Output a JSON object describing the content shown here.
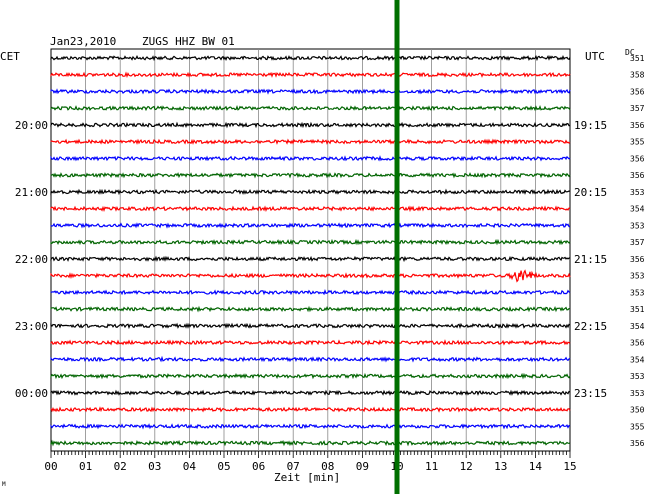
{
  "header": {
    "date": "Jan23,2010",
    "station": "ZUGS HHZ BW 01",
    "left_zone": "CET",
    "right_zone": "UTC",
    "dc_label": "DC"
  },
  "xaxis": {
    "label": "Zeit [min]",
    "ticks": [
      "00",
      "01",
      "02",
      "03",
      "04",
      "05",
      "06",
      "07",
      "08",
      "09",
      "10",
      "11",
      "12",
      "13",
      "14",
      "15"
    ]
  },
  "left_hour_labels": [
    {
      "text": "20:00",
      "trace": 4
    },
    {
      "text": "21:00",
      "trace": 8
    },
    {
      "text": "22:00",
      "trace": 12
    },
    {
      "text": "23:00",
      "trace": 16
    },
    {
      "text": "00:00",
      "trace": 20
    }
  ],
  "right_hour_labels": [
    {
      "text": "19:15",
      "trace": 4
    },
    {
      "text": "20:15",
      "trace": 8
    },
    {
      "text": "21:15",
      "trace": 12
    },
    {
      "text": "22:15",
      "trace": 16
    },
    {
      "text": "23:15",
      "trace": 20
    }
  ],
  "dc_values": [
    "351",
    "358",
    "356",
    "357",
    "356",
    "355",
    "356",
    "356",
    "353",
    "354",
    "353",
    "357",
    "356",
    "353",
    "353",
    "351",
    "354",
    "356",
    "354",
    "353",
    "353",
    "350",
    "355",
    "356"
  ],
  "trace_colors": [
    "#000000",
    "#ff0000",
    "#0000ff",
    "#006400"
  ],
  "marker": {
    "minute": 10,
    "color": "#007000"
  },
  "event": {
    "trace": 13,
    "minute": 13.6
  },
  "footer_mark": "M"
}
